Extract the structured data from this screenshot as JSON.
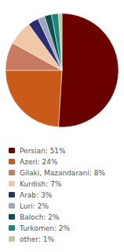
{
  "chart_data": {
    "type": "pie",
    "categories": [
      "Persian: 51%",
      "Azeri: 24%",
      "Gilaki, Mazandarani: 8%",
      "Kurdish: 7%",
      "Arab: 3%",
      "Luri: 2%",
      "Baloch: 2%",
      "Turkomen: 2%",
      "other: 1%"
    ],
    "values": [
      51,
      24,
      8,
      7,
      3,
      2,
      2,
      2,
      1
    ],
    "colors": [
      "#6b0000",
      "#c95a1a",
      "#c87b60",
      "#f0c8a8",
      "#2b2d6e",
      "#9ba8c0",
      "#0d4f4f",
      "#1a8878",
      "#c8c4a8"
    ],
    "legend": "bottom"
  }
}
